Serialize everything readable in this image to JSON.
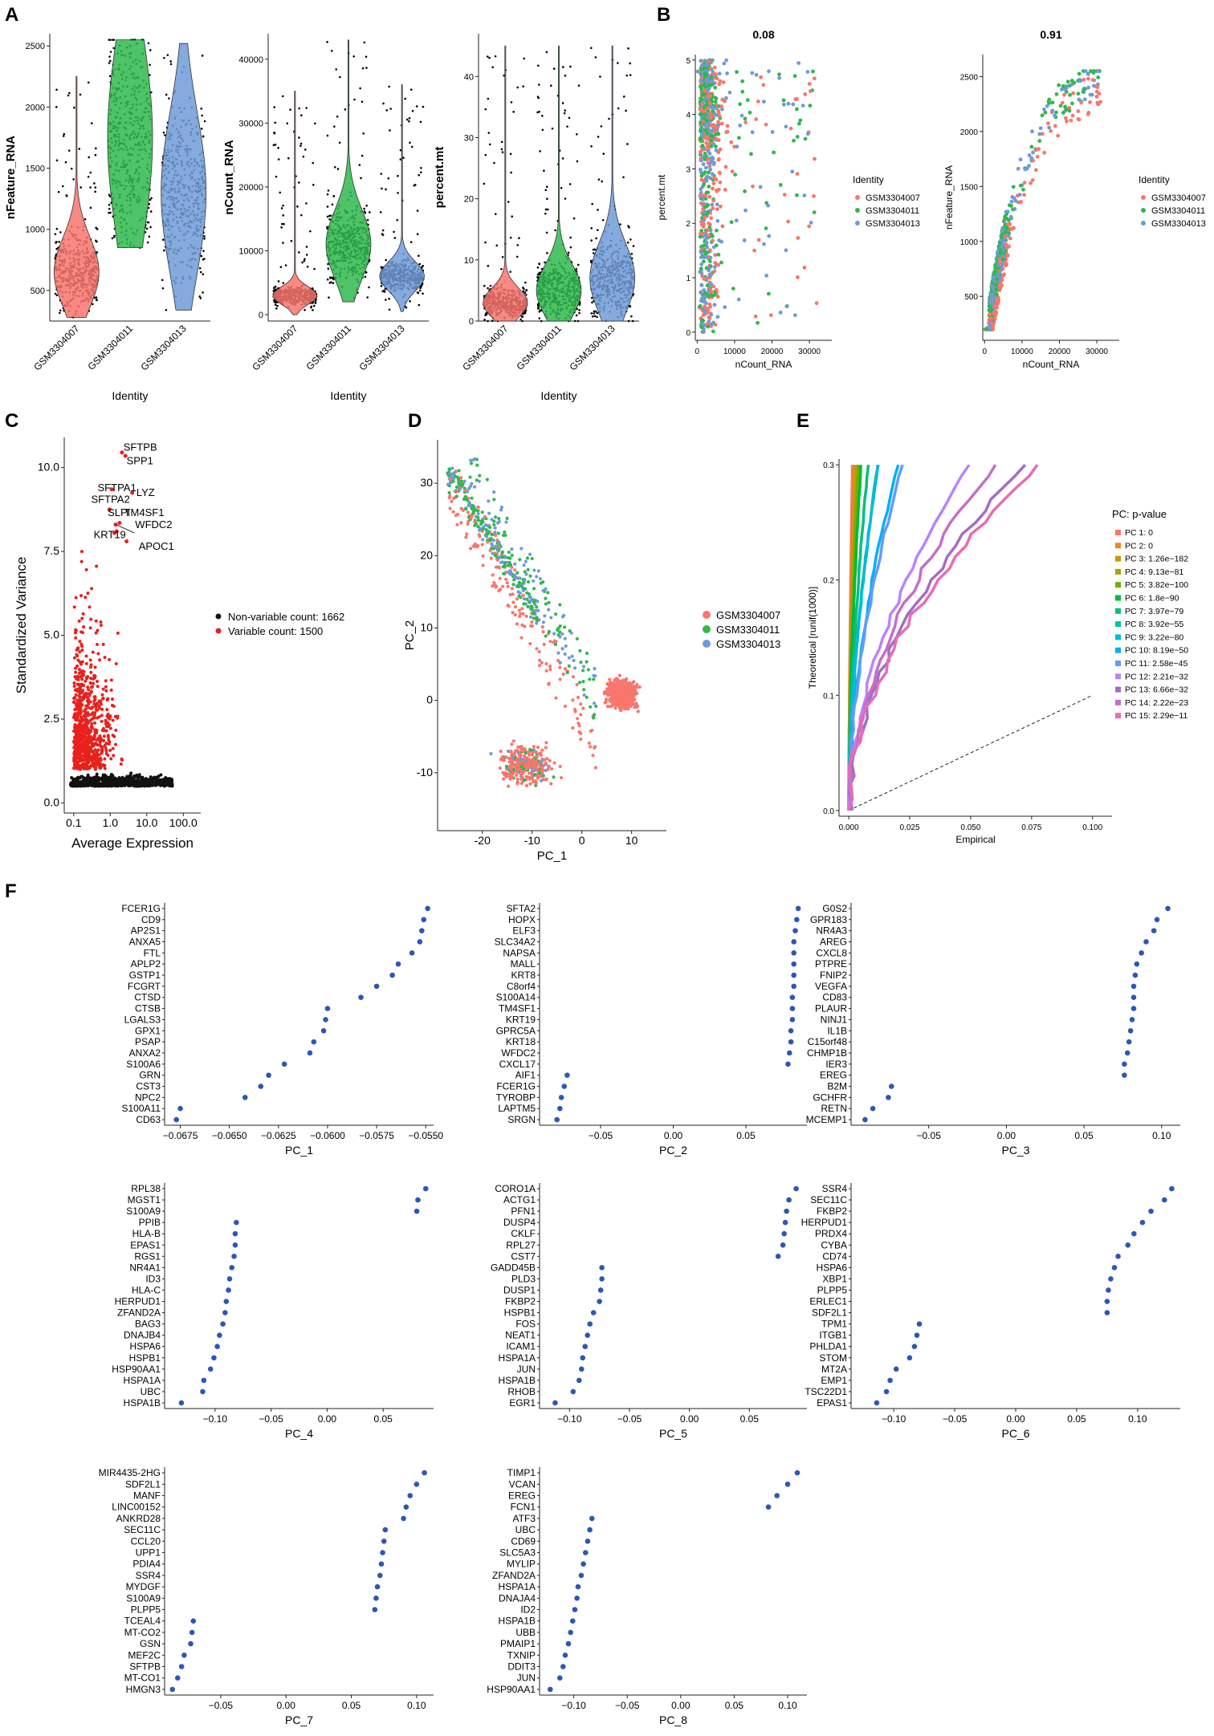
{
  "colors": {
    "s007": "#F8766D",
    "s011": "#2FB84C",
    "s013": "#6E9BD8",
    "black": "#111111",
    "red": "#E8211D",
    "dot": "#2C57B8",
    "line": "#222222"
  },
  "panels": {
    "A": "A",
    "B": "B",
    "C": "C",
    "D": "D",
    "E": "E",
    "F": "F"
  },
  "chart_data": [
    {
      "id": "A1",
      "type": "violin",
      "ylabel": "nFeature_RNA",
      "xlabel": "Identity",
      "categories": [
        "GSM3304007",
        "GSM3304011",
        "GSM3304013"
      ],
      "ylim": [
        250,
        2600
      ],
      "yticks": [
        500,
        1000,
        1500,
        2000,
        2500
      ],
      "medians": [
        700,
        1750,
        1300
      ]
    },
    {
      "id": "A2",
      "type": "violin",
      "ylabel": "nCount_RNA",
      "xlabel": "Identity",
      "categories": [
        "GSM3304007",
        "GSM3304011",
        "GSM3304013"
      ],
      "ylim": [
        -1000,
        44000
      ],
      "yticks": [
        0,
        10000,
        20000,
        30000,
        40000
      ],
      "medians": [
        3500,
        12500,
        6500
      ]
    },
    {
      "id": "A3",
      "type": "violin",
      "ylabel": "percent.mt",
      "xlabel": "Identity",
      "categories": [
        "GSM3304007",
        "GSM3304011",
        "GSM3304013"
      ],
      "ylim": [
        0,
        47
      ],
      "yticks": [
        0,
        10,
        20,
        30,
        40
      ],
      "medians": [
        3.5,
        6,
        8
      ]
    },
    {
      "id": "B1",
      "type": "scatter",
      "title": "0.08",
      "xlabel": "nCount_RNA",
      "ylabel": "percent.mt",
      "xlim": [
        -500,
        36000
      ],
      "ylim": [
        -0.15,
        5.1
      ],
      "xticks": [
        0,
        10000,
        20000,
        30000
      ],
      "yticks": [
        0,
        1,
        2,
        3,
        4,
        5
      ],
      "legend_title": "Identity",
      "legend": [
        "GSM3304007",
        "GSM3304011",
        "GSM3304013"
      ]
    },
    {
      "id": "B2",
      "type": "scatter",
      "title": "0.91",
      "xlabel": "nCount_RNA",
      "ylabel": "nFeature_RNA",
      "xlim": [
        -500,
        36000
      ],
      "ylim": [
        100,
        2700
      ],
      "xticks": [
        0,
        10000,
        20000,
        30000
      ],
      "yticks": [
        500,
        1000,
        1500,
        2000,
        2500
      ],
      "legend_title": "Identity",
      "legend": [
        "GSM3304007",
        "GSM3304011",
        "GSM3304013"
      ]
    },
    {
      "id": "C",
      "type": "scatter",
      "xlabel": "Average Expression",
      "ylabel": "Standardized Variance",
      "xlim": [
        0.055,
        300
      ],
      "ylim": [
        -0.3,
        10.9
      ],
      "xticks": [
        0.1,
        1.0,
        10.0,
        100.0
      ],
      "xtick_labels": [
        "0.1",
        "1.0",
        "10.0",
        "100.0"
      ],
      "yticks": [
        0,
        2.5,
        5,
        7.5,
        10
      ],
      "ytick_labels": [
        "0.0",
        "2.5",
        "5.0",
        "7.5",
        "10.0"
      ],
      "legend": [
        "Non-variable count: 1662",
        "Variable count: 1500"
      ],
      "labels": [
        {
          "t": "SFTPB",
          "x": 2.3,
          "y": 10.5
        },
        {
          "t": "SPP1",
          "x": 2.8,
          "y": 10.1
        },
        {
          "t": "SFTPA1",
          "x": 0.45,
          "y": 9.3
        },
        {
          "t": "LYZ",
          "x": 5.2,
          "y": 9.15
        },
        {
          "t": "SFTPA2",
          "x": 0.3,
          "y": 8.95
        },
        {
          "t": "SLPI",
          "x": 0.85,
          "y": 8.55
        },
        {
          "t": "TM4SF1",
          "x": 2.4,
          "y": 8.55
        },
        {
          "t": "WFDC2",
          "x": 4.8,
          "y": 8.2
        },
        {
          "t": "KRT19",
          "x": 0.35,
          "y": 7.9
        },
        {
          "t": "APOC1",
          "x": 6.0,
          "y": 7.55
        }
      ],
      "label_points": [
        [
          2.1,
          10.45
        ],
        [
          2.6,
          10.35
        ],
        [
          1.1,
          9.35
        ],
        [
          4.0,
          9.25
        ],
        [
          0.95,
          8.75
        ],
        [
          1.4,
          8.3
        ],
        [
          1.8,
          8.35
        ],
        [
          1.3,
          8.05
        ],
        [
          1.5,
          8.1
        ],
        [
          2.8,
          7.8
        ]
      ]
    },
    {
      "id": "D",
      "type": "scatter",
      "xlabel": "PC_1",
      "ylabel": "PC_2",
      "xlim": [
        -29,
        17
      ],
      "ylim": [
        -18,
        36
      ],
      "xticks": [
        -20,
        -10,
        0,
        10
      ],
      "yticks": [
        -10,
        0,
        10,
        20,
        30
      ],
      "legend": [
        "GSM3304007",
        "GSM3304011",
        "GSM3304013"
      ]
    },
    {
      "id": "E",
      "type": "line",
      "xlabel": "Empirical",
      "ylabel": "Theoretical [runif(1000)]",
      "xlim": [
        -0.004,
        0.108
      ],
      "ylim": [
        -0.005,
        0.305
      ],
      "xticks": [
        0,
        0.025,
        0.05,
        0.075,
        0.1
      ],
      "xtick_labels": [
        "0.000",
        "0.025",
        "0.050",
        "0.075",
        "0.100"
      ],
      "yticks": [
        0,
        0.1,
        0.2,
        0.3
      ],
      "ytick_labels": [
        "0.0",
        "0.1",
        "0.2",
        "0.3"
      ],
      "legend_title": "PC: p-value",
      "legend": [
        "PC 1: 0",
        "PC 2: 0",
        "PC 3: 1.26e−182",
        "PC 4: 9.13e−81",
        "PC 5: 3.82e−100",
        "PC 6: 1.8e−90",
        "PC 7: 3.97e−79",
        "PC 8: 3.92e−55",
        "PC 9: 3.22e−80",
        "PC 10: 8.19e−50",
        "PC 11: 2.58e−45",
        "PC 12: 2.21e−32",
        "PC 13: 6.66e−32",
        "PC 14: 2.22e−23",
        "PC 15: 2.29e−11"
      ],
      "series_colors": [
        "#F8766D",
        "#E8852A",
        "#C99800",
        "#A3A500",
        "#6BB100",
        "#00BA38",
        "#00BF7D",
        "#00C0AF",
        "#00BCD8",
        "#00B0F6",
        "#619CFF",
        "#B983FF",
        "#9F6FC4",
        "#C36FC9",
        "#E86BB7"
      ],
      "series_max_x": [
        0.0015,
        0.002,
        0.003,
        0.0035,
        0.004,
        0.005,
        0.008,
        0.012,
        0.012,
        0.02,
        0.022,
        0.05,
        0.072,
        0.06,
        0.078
      ]
    },
    {
      "id": "F1",
      "type": "dot",
      "xlabel": "PC_1",
      "xlim": [
        -0.0683,
        -0.0546
      ],
      "xticks": [
        -0.0675,
        -0.065,
        -0.0625,
        -0.06,
        -0.0575,
        -0.055
      ],
      "xtick_labels": [
        "−0.0675",
        "−0.0650",
        "−0.0625",
        "−0.0600",
        "−0.0575",
        "−0.0550"
      ],
      "genes": [
        "FCER1G",
        "CD9",
        "AP2S1",
        "ANXA5",
        "FTL",
        "APLP2",
        "GSTP1",
        "FCGRT",
        "CTSD",
        "CTSB",
        "LGALS3",
        "GPX1",
        "PSAP",
        "ANXA2",
        "S100A6",
        "GRN",
        "CST3",
        "NPC2",
        "S100A11",
        "CD63"
      ],
      "values": [
        -0.0549,
        -0.0551,
        -0.0552,
        -0.0553,
        -0.0557,
        -0.0564,
        -0.0567,
        -0.0575,
        -0.0583,
        -0.06,
        -0.0601,
        -0.0602,
        -0.0607,
        -0.0609,
        -0.0622,
        -0.063,
        -0.0634,
        -0.0642,
        -0.0675,
        -0.0677
      ]
    },
    {
      "id": "F2",
      "type": "dot",
      "xlabel": "PC_2",
      "xlim": [
        -0.092,
        0.092
      ],
      "xticks": [
        -0.05,
        0,
        0.05
      ],
      "xtick_labels": [
        "−0.05",
        "0.00",
        "0.05"
      ],
      "genes": [
        "SFTA2",
        "HOPX",
        "ELF3",
        "SLC34A2",
        "NAPSA",
        "MALL",
        "KRT8",
        "C8orf4",
        "S100A14",
        "TM4SF1",
        "KRT19",
        "GPRC5A",
        "KRT18",
        "WFDC2",
        "CXCL17",
        "AIF1",
        "FCER1G",
        "TYROBP",
        "LAPTM5",
        "SRGN"
      ],
      "values": [
        0.086,
        0.085,
        0.084,
        0.083,
        0.083,
        0.083,
        0.083,
        0.083,
        0.082,
        0.082,
        0.082,
        0.081,
        0.081,
        0.08,
        0.079,
        -0.073,
        -0.075,
        -0.077,
        -0.078,
        -0.08
      ]
    },
    {
      "id": "F3",
      "type": "dot",
      "xlabel": "PC_3",
      "xlim": [
        -0.1,
        0.112
      ],
      "xticks": [
        -0.05,
        0,
        0.05,
        0.1
      ],
      "xtick_labels": [
        "−0.05",
        "0.00",
        "0.05",
        "0.10"
      ],
      "genes": [
        "G0S2",
        "GPR183",
        "NR4A3",
        "AREG",
        "CXCL8",
        "PTPRE",
        "FNIP2",
        "VEGFA",
        "CD83",
        "PLAUR",
        "NINJ1",
        "IL1B",
        "C15orf48",
        "CHMP1B",
        "IER3",
        "EREG",
        "B2M",
        "GCHFR",
        "RETN",
        "MCEMP1"
      ],
      "values": [
        0.104,
        0.097,
        0.095,
        0.09,
        0.087,
        0.084,
        0.083,
        0.082,
        0.082,
        0.082,
        0.081,
        0.08,
        0.079,
        0.078,
        0.076,
        0.076,
        -0.074,
        -0.076,
        -0.086,
        -0.091
      ]
    },
    {
      "id": "F4",
      "type": "dot",
      "xlabel": "PC_4",
      "xlim": [
        -0.145,
        0.095
      ],
      "xticks": [
        -0.1,
        -0.05,
        0,
        0.05
      ],
      "xtick_labels": [
        "−0.10",
        "−0.05",
        "0.00",
        "0.05"
      ],
      "genes": [
        "RPL38",
        "MGST1",
        "S100A9",
        "PPIB",
        "HLA-B",
        "EPAS1",
        "RGS1",
        "NR4A1",
        "ID3",
        "HLA-C",
        "HERPUD1",
        "ZFAND2A",
        "BAG3",
        "DNAJB4",
        "HSPA6",
        "HSPB1",
        "HSP90AA1",
        "HSPA1A",
        "UBC",
        "HSPA1B"
      ],
      "values": [
        0.088,
        0.081,
        0.08,
        -0.081,
        -0.082,
        -0.082,
        -0.083,
        -0.085,
        -0.087,
        -0.088,
        -0.09,
        -0.091,
        -0.093,
        -0.096,
        -0.098,
        -0.101,
        -0.104,
        -0.11,
        -0.111,
        -0.13
      ]
    },
    {
      "id": "F5",
      "type": "dot",
      "xlabel": "PC_5",
      "xlim": [
        -0.125,
        0.098
      ],
      "xticks": [
        -0.1,
        -0.05,
        0,
        0.05
      ],
      "xtick_labels": [
        "−0.10",
        "−0.05",
        "0.00",
        "0.05"
      ],
      "genes": [
        "CORO1A",
        "ACTG1",
        "PFN1",
        "DUSP4",
        "CKLF",
        "RPL27",
        "CST7",
        "GADD45B",
        "PLD3",
        "DUSP1",
        "FKBP2",
        "HSPB1",
        "FOS",
        "NEAT1",
        "ICAM1",
        "HSPA1A",
        "JUN",
        "HSPA1B",
        "RHOB",
        "EGR1"
      ],
      "values": [
        0.089,
        0.083,
        0.081,
        0.08,
        0.079,
        0.078,
        0.074,
        -0.073,
        -0.073,
        -0.074,
        -0.075,
        -0.08,
        -0.083,
        -0.085,
        -0.087,
        -0.089,
        -0.09,
        -0.092,
        -0.097,
        -0.112
      ]
    },
    {
      "id": "F6",
      "type": "dot",
      "xlabel": "PC_6",
      "xlim": [
        -0.135,
        0.135
      ],
      "xticks": [
        -0.1,
        -0.05,
        0,
        0.05,
        0.1
      ],
      "xtick_labels": [
        "−0.10",
        "−0.05",
        "0.00",
        "0.05",
        "0.10"
      ],
      "genes": [
        "SSR4",
        "SEC11C",
        "FKBP2",
        "HERPUD1",
        "PRDX4",
        "CYBA",
        "CD74",
        "HSPA6",
        "XBP1",
        "PLPP5",
        "ERLEC1",
        "SDF2L1",
        "TPM1",
        "ITGB1",
        "PHLDA1",
        "STOM",
        "MT2A",
        "EMP1",
        "TSC22D1",
        "EPAS1"
      ],
      "values": [
        0.128,
        0.122,
        0.111,
        0.104,
        0.097,
        0.092,
        0.084,
        0.081,
        0.078,
        0.076,
        0.075,
        0.075,
        -0.079,
        -0.081,
        -0.083,
        -0.087,
        -0.098,
        -0.103,
        -0.106,
        -0.114
      ]
    },
    {
      "id": "F7",
      "type": "dot",
      "xlabel": "PC_7",
      "xlim": [
        -0.093,
        0.113
      ],
      "xticks": [
        -0.05,
        0,
        0.05,
        0.1
      ],
      "xtick_labels": [
        "−0.05",
        "0.00",
        "0.05",
        "0.10"
      ],
      "genes": [
        "MIR4435-2HG",
        "SDF2L1",
        "MANF",
        "LINC00152",
        "ANKRD28",
        "SEC11C",
        "CCL20",
        "UPP1",
        "PDIA4",
        "SSR4",
        "MYDGF",
        "S100A9",
        "PLPP5",
        "TCEAL4",
        "MT-CO2",
        "GSN",
        "MEF2C",
        "SFTPB",
        "MT-CO1",
        "HMGN3"
      ],
      "values": [
        0.106,
        0.1,
        0.095,
        0.092,
        0.09,
        0.076,
        0.075,
        0.074,
        0.073,
        0.072,
        0.07,
        0.069,
        0.068,
        -0.071,
        -0.072,
        -0.073,
        -0.078,
        -0.08,
        -0.083,
        -0.087
      ]
    },
    {
      "id": "F8",
      "type": "dot",
      "xlabel": "PC_8",
      "xlim": [
        -0.132,
        0.118
      ],
      "xticks": [
        -0.1,
        -0.05,
        0,
        0.05,
        0.1
      ],
      "xtick_labels": [
        "−0.10",
        "−0.05",
        "0.00",
        "0.05",
        "0.10"
      ],
      "genes": [
        "TIMP1",
        "VCAN",
        "EREG",
        "FCN1",
        "ATF3",
        "UBC",
        "CD69",
        "SLC5A3",
        "MYLIP",
        "ZFAND2A",
        "HSPA1A",
        "DNAJA4",
        "ID2",
        "HSPA1B",
        "UBB",
        "PMAIP1",
        "TXNIP",
        "DDIT3",
        "JUN",
        "HSP90AA1"
      ],
      "values": [
        0.109,
        0.1,
        0.09,
        0.082,
        -0.083,
        -0.085,
        -0.087,
        -0.089,
        -0.091,
        -0.093,
        -0.096,
        -0.097,
        -0.099,
        -0.101,
        -0.103,
        -0.105,
        -0.108,
        -0.11,
        -0.113,
        -0.122
      ]
    }
  ]
}
